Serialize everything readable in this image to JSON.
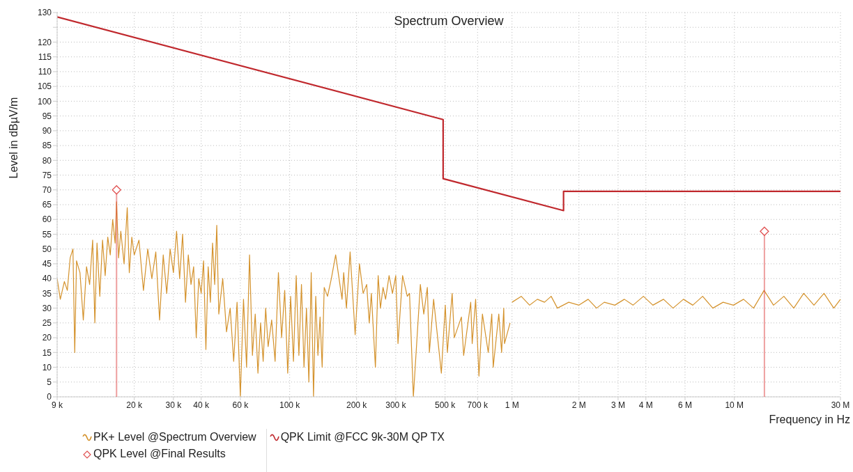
{
  "chart_data": {
    "type": "line",
    "title": "Spectrum Overview",
    "xlabel": "Frequency in Hz",
    "ylabel": "Level in dBµV/m",
    "log": "x",
    "grid": true,
    "legend": "bottom left",
    "xlim": [
      9000,
      30000000
    ],
    "xticks": [
      {
        "value": 9000,
        "label": "9 k"
      },
      {
        "value": 20000,
        "label": "20 k"
      },
      {
        "value": 30000,
        "label": "30 k"
      },
      {
        "value": 40000,
        "label": "40 k"
      },
      {
        "value": 60000,
        "label": "60 k"
      },
      {
        "value": 100000,
        "label": "100 k"
      },
      {
        "value": 200000,
        "label": "200 k"
      },
      {
        "value": 300000,
        "label": "300 k"
      },
      {
        "value": 500000,
        "label": "500 k"
      },
      {
        "value": 700000,
        "label": "700 k"
      },
      {
        "value": 1000000,
        "label": "1 M"
      },
      {
        "value": 2000000,
        "label": "2 M"
      },
      {
        "value": 3000000,
        "label": "3 M"
      },
      {
        "value": 4000000,
        "label": "4 M"
      },
      {
        "value": 6000000,
        "label": "6 M"
      },
      {
        "value": 10000000,
        "label": "10 M"
      },
      {
        "value": 30000000,
        "label": "30 M"
      }
    ],
    "ylim": [
      0,
      130
    ],
    "yticks": [
      0,
      5,
      10,
      15,
      20,
      25,
      30,
      35,
      40,
      45,
      50,
      55,
      60,
      65,
      70,
      75,
      80,
      85,
      90,
      95,
      100,
      105,
      110,
      115,
      120,
      {
        "value": 125,
        "label": null
      },
      130
    ],
    "series": [
      {
        "name": "PK+ Level @Spectrum Overview",
        "marker": "none",
        "line_style": "solid",
        "color": "#d4922c",
        "x": [
          9000,
          9300,
          9700,
          10000,
          10300,
          10600,
          10800,
          11000,
          11400,
          11800,
          12200,
          12600,
          13000,
          13300,
          13600,
          14000,
          14400,
          14800,
          15200,
          15600,
          16000,
          16400,
          16650,
          17000,
          17400,
          18000,
          18600,
          19000,
          19500,
          20000,
          21000,
          22000,
          23000,
          24000,
          25000,
          26000,
          27000,
          28000,
          29000,
          30000,
          31000,
          32000,
          33000,
          34000,
          35000,
          36000,
          37000,
          38000,
          39000,
          40000,
          41000,
          42000,
          43000,
          44000,
          45000,
          46000,
          47000,
          48000,
          50000,
          52000,
          54000,
          56000,
          58000,
          60000,
          62000,
          64000,
          66000,
          68000,
          70000,
          72000,
          74000,
          76000,
          78000,
          80000,
          83000,
          86000,
          89000,
          92000,
          95000,
          98000,
          101000,
          104000,
          107000,
          110000,
          113000,
          116000,
          119000,
          122000,
          125000,
          128000,
          131000,
          134000,
          137000,
          140000,
          143000,
          148000,
          154000,
          161000,
          172000,
          175000,
          180000,
          187000,
          197000,
          206000,
          214000,
          222000,
          228000,
          233000,
          243000,
          250000,
          256000,
          263000,
          270000,
          280000,
          290000,
          300000,
          307000,
          322000,
          338000,
          346000,
          360000,
          387000,
          401000,
          416000,
          425000,
          444000,
          481000,
          501000,
          512000,
          538000,
          550000,
          592000,
          606000,
          652000,
          662000,
          686000,
          710000,
          736000,
          782000,
          811000,
          823000,
          872000,
          898000,
          918000,
          925000,
          980000,
          990000,
          1000000,
          1100000,
          1200000,
          1300000,
          1400000,
          1500000,
          1600000,
          1800000,
          2000000,
          2200000,
          2400000,
          2600000,
          2900000,
          3200000,
          3500000,
          3900000,
          4300000,
          4800000,
          5300000,
          5900000,
          6500000,
          7200000,
          8000000,
          8900000,
          9900000,
          11000000,
          12200000,
          13600000,
          15000000,
          16700000,
          18500000,
          20500000,
          22800000,
          25300000,
          28000000,
          30000000
        ],
        "values": [
          40,
          33,
          39,
          36,
          47,
          50,
          15,
          46,
          42,
          26,
          44,
          38,
          53,
          25,
          52,
          34,
          53,
          41,
          54,
          48,
          60,
          52,
          66,
          47,
          56,
          45,
          64,
          42,
          54,
          48,
          53,
          36,
          50,
          40,
          49,
          26,
          48,
          35,
          50,
          42,
          56,
          40,
          55,
          32,
          48,
          38,
          44,
          20,
          40,
          35,
          46,
          16,
          44,
          32,
          52,
          38,
          58,
          28,
          40,
          22,
          30,
          12,
          32,
          0,
          33,
          10,
          48,
          14,
          28,
          8,
          25,
          12,
          30,
          17,
          26,
          12,
          42,
          20,
          36,
          8,
          34,
          12,
          41,
          14,
          38,
          10,
          30,
          5,
          42,
          0,
          34,
          14,
          27,
          10,
          37,
          34,
          40,
          48,
          33,
          42,
          30,
          49,
          21,
          45,
          35,
          38,
          25,
          35,
          10,
          41,
          30,
          37,
          33,
          41,
          35,
          41,
          18,
          41,
          34,
          35,
          0,
          38,
          28,
          37,
          15,
          33,
          8,
          31,
          15,
          35,
          20,
          27,
          14,
          32,
          18,
          33,
          7,
          28,
          15,
          28,
          10,
          28,
          15,
          30,
          18,
          25,
          null,
          32,
          34,
          31,
          33,
          32,
          34,
          30,
          32,
          31,
          33,
          30,
          32,
          31,
          33,
          31,
          34,
          31,
          33,
          30,
          33,
          31,
          34,
          30,
          32,
          31,
          33,
          30,
          36,
          31,
          34,
          30,
          35,
          31,
          35,
          30,
          33
        ]
      },
      {
        "name": "QPK Level @Final Results",
        "type": "lollipop",
        "marker": "diamond",
        "color": "#e05050",
        "x": [
          16650,
          13650000
        ],
        "values": [
          70,
          56
        ]
      },
      {
        "name": "QPK Limit @FCC 9k-30M QP TX",
        "marker": "none",
        "line_style": "solid",
        "color": "#c0282d",
        "x": [
          9000,
          490000,
          490000,
          1705000,
          1705000,
          30000000
        ],
        "values": [
          128.5,
          93.8,
          73.8,
          63.0,
          69.5,
          69.5
        ]
      }
    ]
  }
}
